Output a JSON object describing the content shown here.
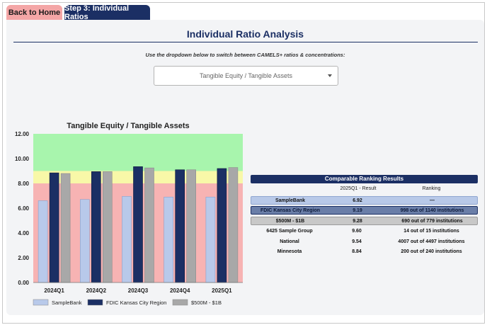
{
  "tabs": {
    "home": "Back to Home",
    "step": "Step 3: Individual Ratios"
  },
  "page_title": "Individual Ratio Analysis",
  "instruction": "Use the dropdown below to switch between CAMELS+ ratios & concentrations:",
  "dropdown": {
    "selected": "Tangible Equity / Tangible Assets"
  },
  "chart_data": {
    "type": "bar",
    "title": "Tangible Equity / Tangible Assets",
    "categories": [
      "2024Q1",
      "2024Q2",
      "2024Q3",
      "2024Q4",
      "2025Q1"
    ],
    "series": [
      {
        "name": "SampleBank",
        "values": [
          6.6,
          6.7,
          6.95,
          6.9,
          6.9
        ],
        "color": "#b8c9ea"
      },
      {
        "name": "FDIC Kansas City Region",
        "values": [
          8.85,
          8.95,
          9.35,
          9.1,
          9.2
        ],
        "color": "#1b2f64"
      },
      {
        "name": "$500M - $1B",
        "values": [
          8.8,
          8.95,
          9.25,
          9.1,
          9.28
        ],
        "color": "#a8a8a8"
      }
    ],
    "ylim": [
      0,
      12
    ],
    "yticks": [
      "0.00",
      "2.00",
      "4.00",
      "6.00",
      "8.00",
      "10.00",
      "12.00"
    ],
    "bands": [
      {
        "from": 0,
        "to": 8,
        "color": "#f7b3b3"
      },
      {
        "from": 8,
        "to": 9,
        "color": "#f8f8a8"
      },
      {
        "from": 9,
        "to": 12,
        "color": "#a8f5ad"
      }
    ],
    "legend_position": "bottom"
  },
  "ranking": {
    "header": "Comparable Ranking Results",
    "col_result": "2025Q1 - Result",
    "col_ranking": "Ranking",
    "rows": [
      {
        "name": "SampleBank",
        "result": "6.92",
        "ranking": "—"
      },
      {
        "name": "FDIC Kansas City Region",
        "result": "9.19",
        "ranking": "998 out of 1140 institutions"
      },
      {
        "name": "$500M - $1B",
        "result": "9.28",
        "ranking": "690 out of 779 institutions"
      },
      {
        "name": "6425 Sample Group",
        "result": "9.60",
        "ranking": "14 out of 15 institutions"
      },
      {
        "name": "National",
        "result": "9.54",
        "ranking": "4007 out of 4497 institutions"
      },
      {
        "name": "Minnesota",
        "result": "8.84",
        "ranking": "200 out of 240 institutions"
      }
    ]
  }
}
